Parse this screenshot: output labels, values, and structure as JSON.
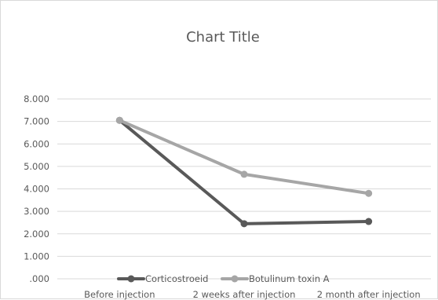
{
  "chart_data": {
    "type": "line",
    "title": "Chart Title",
    "categories": [
      "Before injection",
      "2 weeks after injection",
      "2 month after injection"
    ],
    "series": [
      {
        "name": "Corticostroeid",
        "color": "#595959",
        "values": [
          7.05,
          2.45,
          2.55
        ]
      },
      {
        "name": "Botulinum toxin A",
        "color": "#a6a6a6",
        "values": [
          7.05,
          4.65,
          3.8
        ]
      }
    ],
    "ylim": [
      0,
      8
    ],
    "yticks": [
      ".000",
      "1.000",
      "2.000",
      "3.000",
      "4.000",
      "5.000",
      "6.000",
      "7.000",
      "8.000"
    ],
    "grid": true,
    "legend": "bottom"
  }
}
